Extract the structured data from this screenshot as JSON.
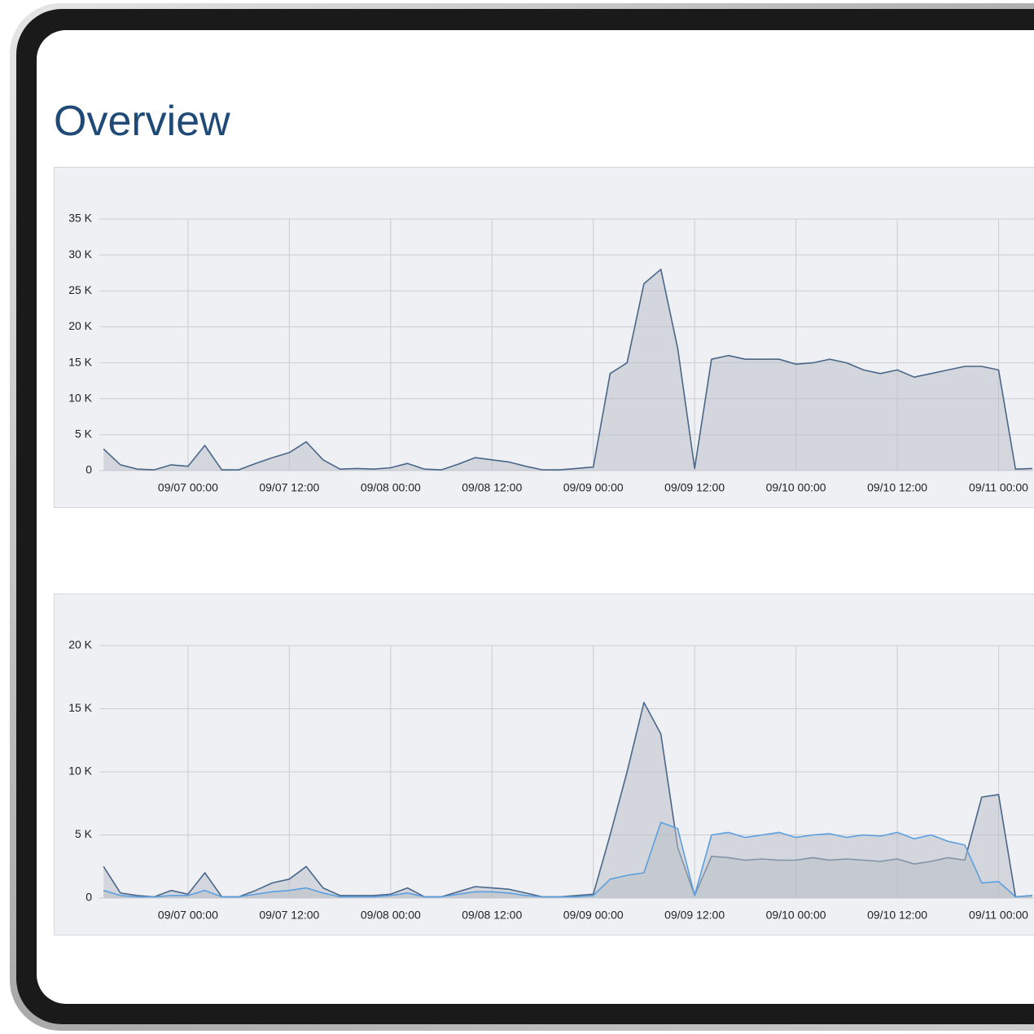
{
  "header": {
    "title": "Overview"
  },
  "chart_data": [
    {
      "type": "area",
      "x": [
        "09/06 14:00",
        "09/06 16:00",
        "09/06 18:00",
        "09/06 20:00",
        "09/06 22:00",
        "09/07 00:00",
        "09/07 02:00",
        "09/07 04:00",
        "09/07 06:00",
        "09/07 08:00",
        "09/07 10:00",
        "09/07 12:00",
        "09/07 14:00",
        "09/07 16:00",
        "09/07 18:00",
        "09/07 20:00",
        "09/07 22:00",
        "09/08 00:00",
        "09/08 02:00",
        "09/08 04:00",
        "09/08 06:00",
        "09/08 08:00",
        "09/08 10:00",
        "09/08 12:00",
        "09/08 14:00",
        "09/08 16:00",
        "09/08 18:00",
        "09/08 20:00",
        "09/08 22:00",
        "09/09 00:00",
        "09/09 02:00",
        "09/09 04:00",
        "09/09 06:00",
        "09/09 08:00",
        "09/09 10:00",
        "09/09 12:00",
        "09/09 14:00",
        "09/09 16:00",
        "09/09 18:00",
        "09/09 20:00",
        "09/09 22:00",
        "09/10 00:00",
        "09/10 02:00",
        "09/10 04:00",
        "09/10 06:00",
        "09/10 08:00",
        "09/10 10:00",
        "09/10 12:00",
        "09/10 14:00",
        "09/10 16:00",
        "09/10 18:00",
        "09/10 20:00",
        "09/10 22:00",
        "09/11 00:00",
        "09/11 02:00",
        "09/11 04:00"
      ],
      "series": [
        {
          "color": "#4a6688",
          "values": [
            3000,
            800,
            200,
            100,
            800,
            600,
            3500,
            100,
            100,
            1000,
            1800,
            2500,
            4000,
            1500,
            200,
            300,
            200,
            400,
            1000,
            200,
            100,
            900,
            1800,
            1500,
            1200,
            600,
            100,
            100,
            300,
            500,
            13500,
            15000,
            26000,
            28000,
            17000,
            300,
            15500,
            16000,
            15500,
            15500,
            15500,
            14800,
            15000,
            15500,
            15000,
            14000,
            13500,
            14000,
            13000,
            13500,
            14000,
            14500,
            14500,
            14000,
            200,
            300
          ]
        }
      ],
      "xlim": [
        "09/06 13:30",
        "09/11 04:00"
      ],
      "xticks": [
        "09/07 00:00",
        "09/07 12:00",
        "09/08 00:00",
        "09/08 12:00",
        "09/09 00:00",
        "09/09 12:00",
        "09/10 00:00",
        "09/10 12:00",
        "09/11 00:00"
      ],
      "ylim": [
        0,
        35000
      ],
      "yticks": [
        0,
        {
          "value": 5000,
          "label": "5 K"
        },
        {
          "value": 10000,
          "label": "10 K"
        },
        {
          "value": 15000,
          "label": "15 K"
        },
        {
          "value": 20000,
          "label": "20 K"
        },
        {
          "value": 25000,
          "label": "25 K"
        },
        {
          "value": 30000,
          "label": "30 K"
        },
        {
          "value": 35000,
          "label": "35 K"
        }
      ],
      "grid": true
    },
    {
      "type": "area",
      "x": [
        "09/06 14:00",
        "09/06 16:00",
        "09/06 18:00",
        "09/06 20:00",
        "09/06 22:00",
        "09/07 00:00",
        "09/07 02:00",
        "09/07 04:00",
        "09/07 06:00",
        "09/07 08:00",
        "09/07 10:00",
        "09/07 12:00",
        "09/07 14:00",
        "09/07 16:00",
        "09/07 18:00",
        "09/07 20:00",
        "09/07 22:00",
        "09/08 00:00",
        "09/08 02:00",
        "09/08 04:00",
        "09/08 06:00",
        "09/08 08:00",
        "09/08 10:00",
        "09/08 12:00",
        "09/08 14:00",
        "09/08 16:00",
        "09/08 18:00",
        "09/08 20:00",
        "09/08 22:00",
        "09/09 00:00",
        "09/09 02:00",
        "09/09 04:00",
        "09/09 06:00",
        "09/09 08:00",
        "09/09 10:00",
        "09/09 12:00",
        "09/09 14:00",
        "09/09 16:00",
        "09/09 18:00",
        "09/09 20:00",
        "09/09 22:00",
        "09/10 00:00",
        "09/10 02:00",
        "09/10 04:00",
        "09/10 06:00",
        "09/10 08:00",
        "09/10 10:00",
        "09/10 12:00",
        "09/10 14:00",
        "09/10 16:00",
        "09/10 18:00",
        "09/10 20:00",
        "09/10 22:00",
        "09/11 00:00",
        "09/11 02:00",
        "09/11 04:00"
      ],
      "series": [
        {
          "color": "#4a6688",
          "values": [
            2500,
            400,
            200,
            100,
            600,
            300,
            2000,
            100,
            100,
            600,
            1200,
            1500,
            2500,
            800,
            200,
            200,
            200,
            300,
            800,
            100,
            100,
            500,
            900,
            800,
            700,
            400,
            100,
            100,
            200,
            300,
            5000,
            10000,
            15500,
            13000,
            4000,
            200,
            3300,
            3200,
            3000,
            3100,
            3000,
            3000,
            3200,
            3000,
            3100,
            3000,
            2900,
            3100,
            2700,
            2900,
            3200,
            3000,
            8000,
            8200,
            100,
            200
          ]
        },
        {
          "color": "#5b9fe0",
          "values": [
            600,
            200,
            100,
            100,
            200,
            200,
            600,
            100,
            100,
            300,
            500,
            600,
            800,
            400,
            100,
            100,
            100,
            200,
            400,
            100,
            100,
            300,
            500,
            500,
            400,
            200,
            100,
            100,
            100,
            200,
            1500,
            1800,
            2000,
            6000,
            5500,
            200,
            5000,
            5200,
            4800,
            5000,
            5200,
            4800,
            5000,
            5100,
            4800,
            5000,
            4900,
            5200,
            4700,
            5000,
            4500,
            4200,
            1200,
            1300,
            100,
            200
          ]
        }
      ],
      "xlim": [
        "09/06 13:30",
        "09/11 04:00"
      ],
      "xticks": [
        "09/07 00:00",
        "09/07 12:00",
        "09/08 00:00",
        "09/08 12:00",
        "09/09 00:00",
        "09/09 12:00",
        "09/10 00:00",
        "09/10 12:00",
        "09/11 00:00"
      ],
      "ylim": [
        0,
        20000
      ],
      "yticks": [
        0,
        {
          "value": 5000,
          "label": "5 K"
        },
        {
          "value": 10000,
          "label": "10 K"
        },
        {
          "value": 15000,
          "label": "15 K"
        },
        {
          "value": 20000,
          "label": "20 K"
        }
      ],
      "grid": true
    }
  ]
}
